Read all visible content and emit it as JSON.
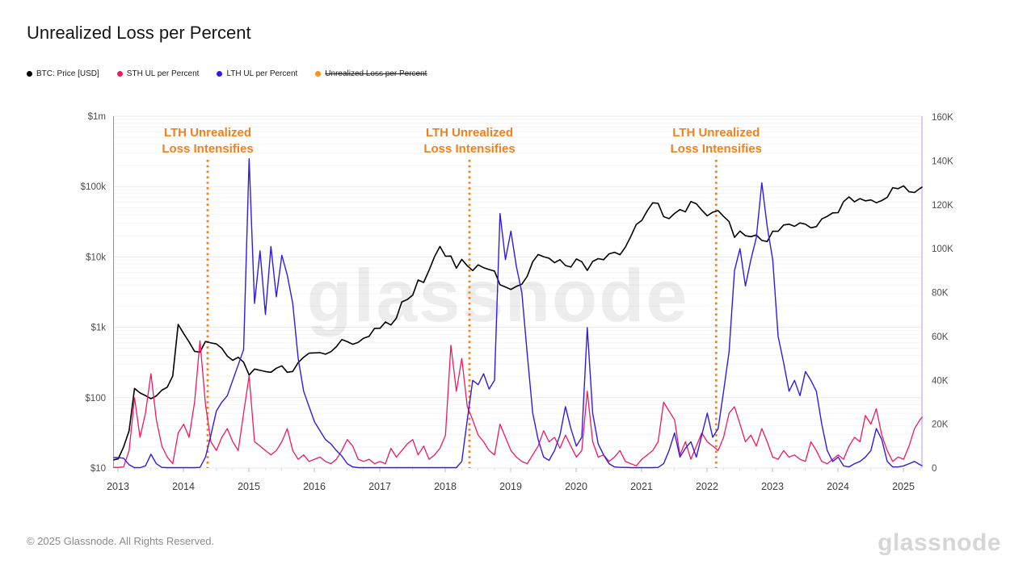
{
  "page": {
    "title": "Unrealized Loss per Percent",
    "copyright": "© 2025 Glassnode. All Rights Reserved.",
    "brand_logo": "glassnode",
    "watermark": "glassnode",
    "background": "#ffffff"
  },
  "legend": {
    "items": [
      {
        "label": "BTC: Price [USD]",
        "color": "#000000",
        "disabled": false
      },
      {
        "label": "STH UL per Percent",
        "color": "#f1195e",
        "disabled": false
      },
      {
        "label": "LTH UL per Percent",
        "color": "#311be0",
        "disabled": false
      },
      {
        "label": "Unrealized Loss per Percent",
        "color": "#f7941d",
        "disabled": true
      }
    ]
  },
  "annotations": {
    "color": "#f2801e",
    "label_lines": [
      "LTH Unrealized",
      "Loss Intensifies"
    ],
    "events": [
      {
        "t": 2014.37
      },
      {
        "t": 2018.37
      },
      {
        "t": 2022.14
      }
    ]
  },
  "chart_data": {
    "type": "line",
    "title": "Unrealized Loss per Percent",
    "grid": "horizontal-log",
    "legend_position": "top-left",
    "x_axis": {
      "label": "",
      "range": [
        2012.92,
        2025.3
      ],
      "ticks": [
        2013,
        2014,
        2015,
        2016,
        2017,
        2018,
        2019,
        2020,
        2021,
        2022,
        2023,
        2024,
        2025
      ]
    },
    "y_left": {
      "scale": "log",
      "range": [
        10,
        1000000
      ],
      "unit": "USD",
      "ticks": [
        {
          "label": "$1m",
          "value": 1000000
        },
        {
          "label": "$100k",
          "value": 100000
        },
        {
          "label": "$10k",
          "value": 10000
        },
        {
          "label": "$1k",
          "value": 1000
        },
        {
          "label": "$100",
          "value": 100
        },
        {
          "label": "$10",
          "value": 10
        }
      ]
    },
    "y_right": {
      "scale": "linear",
      "range": [
        0,
        160000
      ],
      "unit": "K",
      "ticks": [
        {
          "label": "160K",
          "value": 160
        },
        {
          "label": "140K",
          "value": 140
        },
        {
          "label": "120K",
          "value": 120
        },
        {
          "label": "100K",
          "value": 100
        },
        {
          "label": "80K",
          "value": 80
        },
        {
          "label": "60K",
          "value": 60
        },
        {
          "label": "40K",
          "value": 40
        },
        {
          "label": "20K",
          "value": 20
        },
        {
          "label": "0",
          "value": 0
        }
      ]
    },
    "sampling": {
      "start": 2012.92,
      "step_years": 0.083333
    },
    "series": [
      {
        "name": "BTC: Price [USD]",
        "color": "#000000",
        "axis": "left",
        "visible": true,
        "width": 1.6,
        "values": [
          13,
          13.5,
          20,
          34,
          135,
          117,
          107,
          97,
          106,
          128,
          141,
          204,
          1100,
          815,
          620,
          455,
          445,
          630,
          600,
          580,
          505,
          390,
          340,
          375,
          320,
          210,
          255,
          245,
          235,
          230,
          262,
          284,
          230,
          236,
          315,
          375,
          430,
          433,
          437,
          415,
          450,
          530,
          670,
          625,
          575,
          610,
          700,
          745,
          965,
          970,
          1190,
          1080,
          1350,
          2300,
          2480,
          2875,
          4700,
          4340,
          6470,
          10100,
          14100,
          10250,
          10300,
          6930,
          9240,
          7500,
          6400,
          7730,
          7030,
          6625,
          6300,
          4020,
          3740,
          3450,
          3815,
          4100,
          5320,
          8550,
          10820,
          10080,
          9590,
          8300,
          9150,
          7550,
          7195,
          9350,
          8550,
          6440,
          8630,
          9450,
          9140,
          11050,
          11650,
          10780,
          13800,
          19700,
          29000,
          33100,
          45240,
          58800,
          57750,
          37330,
          35040,
          41500,
          47110,
          43790,
          61320,
          57000,
          46200,
          38480,
          43190,
          45540,
          37650,
          31790,
          19000,
          23300,
          20050,
          19420,
          20490,
          17170,
          16550,
          23130,
          23140,
          28480,
          29250,
          27220,
          30480,
          29230,
          25930,
          26960,
          34650,
          37710,
          42260,
          42580,
          61200,
          71330,
          60640,
          67500,
          62680,
          64620,
          58970,
          63330,
          70220,
          96450,
          93430,
          102400,
          84350,
          82550,
          94200,
          104000
        ]
      },
      {
        "name": "STH UL per Percent",
        "color": "#f1195e",
        "axis": "right",
        "visible": true,
        "width": 1.3,
        "values": [
          0.3,
          0.3,
          0.5,
          8,
          32,
          14,
          25,
          43,
          22,
          10,
          5,
          2,
          16,
          20,
          14,
          30,
          58,
          29,
          12,
          8,
          14,
          18,
          12,
          8,
          25,
          42,
          12,
          10,
          8,
          6,
          8,
          12,
          18,
          8,
          4,
          6,
          3,
          4,
          5,
          3,
          2,
          4,
          8,
          13,
          10,
          4,
          3,
          4,
          2,
          3,
          2,
          9,
          5,
          8,
          11,
          13,
          6,
          10,
          4,
          6,
          9,
          15,
          56,
          35,
          50,
          28,
          22,
          15,
          12,
          8,
          6,
          20,
          14,
          8,
          5,
          3,
          2,
          6,
          10,
          17,
          12,
          14,
          9,
          15,
          10,
          5,
          8,
          35,
          12,
          5,
          6,
          3,
          5,
          8,
          3,
          2,
          1,
          4,
          6,
          8,
          12,
          30,
          26,
          22,
          6,
          12,
          4,
          10,
          16,
          12,
          10,
          8,
          14,
          25,
          28,
          20,
          12,
          15,
          10,
          18,
          12,
          5,
          4,
          8,
          5,
          6,
          4,
          3,
          12,
          8,
          3,
          2,
          4,
          6,
          4,
          10,
          14,
          12,
          24,
          20,
          27,
          15,
          8,
          3,
          5,
          4,
          10,
          18,
          22,
          25
        ]
      },
      {
        "name": "LTH UL per Percent",
        "color": "#311be0",
        "axis": "right",
        "visible": true,
        "width": 1.4,
        "values": [
          4.8,
          4.8,
          4.5,
          1.5,
          0.2,
          0.2,
          1,
          6.3,
          2,
          0.3,
          0.2,
          0.2,
          0.2,
          0.2,
          0.2,
          0.2,
          0.3,
          5,
          15,
          26,
          30,
          33,
          40,
          47,
          54,
          141,
          75,
          99,
          70,
          101,
          78,
          97,
          88,
          75,
          50,
          35,
          28,
          21,
          17,
          13,
          11,
          8,
          5.5,
          2,
          0.5,
          0.2,
          0.2,
          0.2,
          0.2,
          0.2,
          0.2,
          0.2,
          0.2,
          0.2,
          0.2,
          0.2,
          0.2,
          0.2,
          0.2,
          0.2,
          0.2,
          0.2,
          0.2,
          0.2,
          3,
          22,
          40,
          38,
          43,
          36,
          40,
          116,
          95,
          108,
          92,
          80,
          52,
          25,
          13,
          5,
          3.5,
          8,
          15,
          28,
          18,
          10,
          14,
          64,
          25,
          11,
          6,
          2,
          0.5,
          0.3,
          0.3,
          0.2,
          0.2,
          0.2,
          0.2,
          0.2,
          0.3,
          2,
          8,
          16,
          5,
          9,
          12,
          5,
          15,
          25,
          14,
          18,
          35,
          53,
          90,
          100,
          83,
          95,
          105,
          130,
          110,
          95,
          60,
          48,
          35,
          40,
          33,
          44,
          40,
          35,
          20,
          8,
          3,
          5,
          1,
          0.5,
          2,
          3,
          5,
          8,
          18,
          13,
          3,
          0.5,
          0.5,
          1,
          2,
          3,
          1.5,
          0.5
        ]
      },
      {
        "name": "Unrealized Loss per Percent",
        "color": "#f7941d",
        "axis": "right",
        "visible": false,
        "width": 1.3,
        "values": []
      }
    ]
  }
}
